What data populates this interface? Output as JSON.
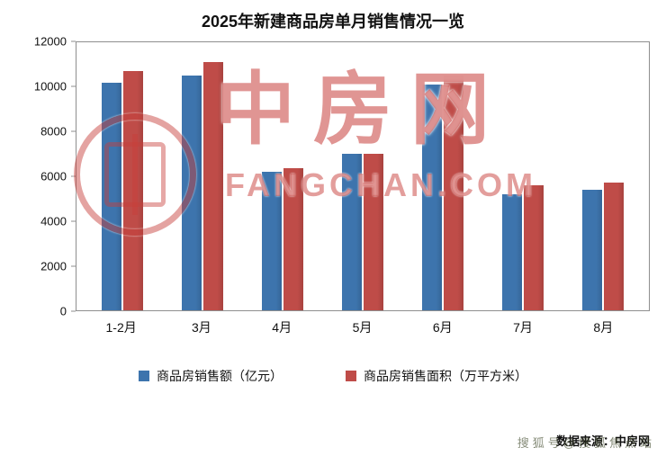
{
  "title": "2025年新建商品房单月销售情况一览",
  "chart_data": {
    "type": "bar",
    "categories": [
      "1-2月",
      "3月",
      "4月",
      "5月",
      "6月",
      "7月",
      "8月"
    ],
    "series": [
      {
        "name": "商品房销售额（亿元）",
        "color": "#3d74ad",
        "values": [
          10200,
          10500,
          6200,
          7000,
          10100,
          5200,
          5400
        ]
      },
      {
        "name": "商品房销售面积（万平方米）",
        "color": "#bf4c48",
        "values": [
          10700,
          11100,
          6350,
          7000,
          10500,
          5600,
          5700
        ]
      }
    ],
    "title": "2025年新建商品房单月销售情况一览",
    "xlabel": "",
    "ylabel": "",
    "ylim": [
      0,
      12000
    ],
    "yticks": [
      0,
      2000,
      4000,
      6000,
      8000,
      10000,
      12000
    ],
    "grid": false,
    "legend_position": "bottom"
  },
  "watermark": {
    "cn": "中房网",
    "en": "FANGCHAN.COM"
  },
  "footer": {
    "source": "数据来源：中房网",
    "overlay": "搜狐号@搜狐焦点站"
  }
}
